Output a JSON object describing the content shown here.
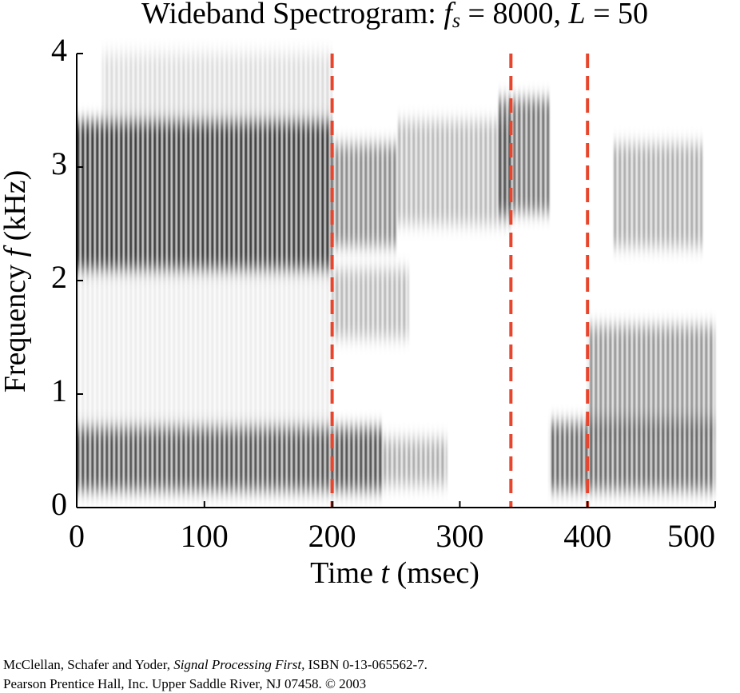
{
  "chart_data": {
    "type": "spectrogram",
    "title": [
      "Wideband Spectrogram:  ",
      "f",
      "s",
      " = 8000, ",
      "L",
      " = 50"
    ],
    "xlabel": [
      "Time ",
      "t",
      "  (msec)"
    ],
    "ylabel": [
      "Frequency ",
      "f",
      "  (kHz)"
    ],
    "xlim": [
      0,
      500
    ],
    "xticks": [
      0,
      100,
      200,
      300,
      400,
      500
    ],
    "ylim": [
      0,
      4
    ],
    "yticks": [
      0,
      1,
      2,
      3,
      4
    ],
    "color": "#000000",
    "bands": [
      {
        "t0": 0,
        "t1": 200,
        "f0": 2.1,
        "f1": 3.4,
        "level": 0.85
      },
      {
        "t0": 200,
        "t1": 250,
        "f0": 2.3,
        "f1": 3.2,
        "level": 0.5
      },
      {
        "t0": 250,
        "t1": 340,
        "f0": 2.5,
        "f1": 3.4,
        "level": 0.3
      },
      {
        "t0": 330,
        "t1": 370,
        "f0": 2.6,
        "f1": 3.6,
        "level": 0.6
      },
      {
        "t0": 420,
        "t1": 490,
        "f0": 2.3,
        "f1": 3.2,
        "level": 0.35
      },
      {
        "t0": 0,
        "t1": 240,
        "f0": 0.15,
        "f1": 0.7,
        "level": 0.75
      },
      {
        "t0": 240,
        "t1": 290,
        "f0": 0.2,
        "f1": 0.6,
        "level": 0.35
      },
      {
        "t0": 370,
        "t1": 500,
        "f0": 0.15,
        "f1": 0.75,
        "level": 0.65
      },
      {
        "t0": 400,
        "t1": 500,
        "f0": 0.7,
        "f1": 1.6,
        "level": 0.45
      },
      {
        "t0": 200,
        "t1": 260,
        "f0": 1.5,
        "f1": 2.1,
        "level": 0.3
      },
      {
        "t0": 20,
        "t1": 200,
        "f0": 3.4,
        "f1": 4,
        "level": 0.15
      },
      {
        "t0": 0,
        "t1": 200,
        "f0": 0.7,
        "f1": 2.1,
        "level": 0.08
      }
    ],
    "markers": [
      200,
      340,
      400
    ],
    "marker_color": "#e8452c"
  },
  "footer": [
    "McClellan, Schafer and Yoder, ",
    "Signal Processing First,",
    " ISBN 0-13-065562-7.",
    "Pearson Prentice Hall, Inc.  Upper Saddle River, NJ 07458.  © 2003"
  ]
}
